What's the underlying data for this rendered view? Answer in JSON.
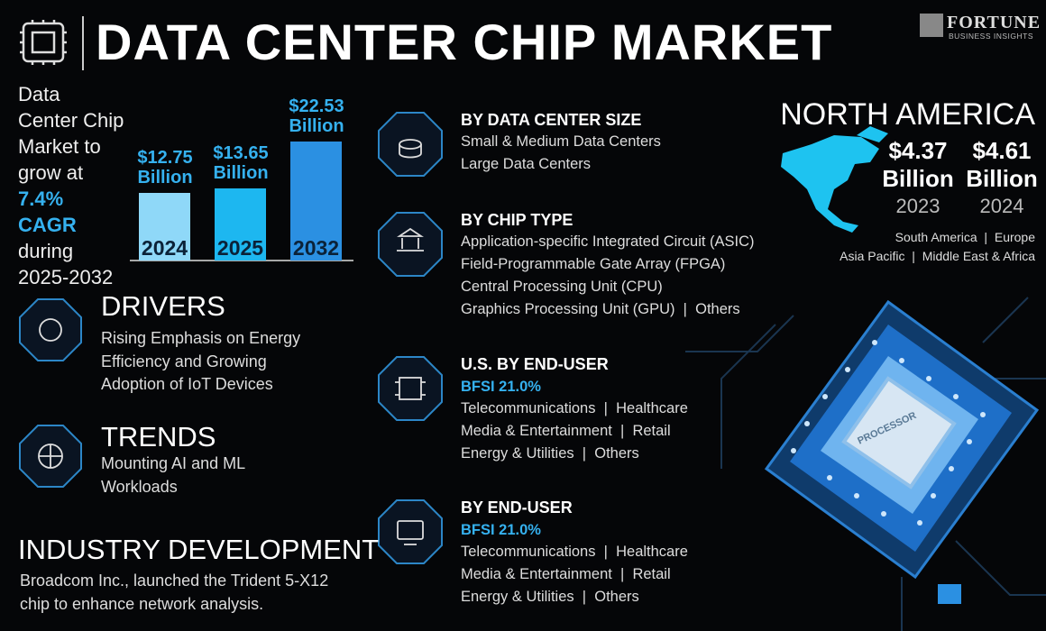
{
  "header": {
    "title": "DATA CENTER CHIP MARKET",
    "brand": "FORTUNE",
    "brand_sub": "BUSINESS INSIGHTS"
  },
  "growth": {
    "text_1": "Data Center Chip Market to grow at",
    "cagr": "7.4% CAGR",
    "text_2": "during 2025-2032"
  },
  "market_chart": {
    "type": "bar",
    "categories": [
      "2024",
      "2025",
      "2032"
    ],
    "values": [
      12.75,
      13.65,
      22.53
    ],
    "value_labels": [
      "$12.75 Billion",
      "$13.65 Billion",
      "$22.53 Billion"
    ],
    "colors": [
      "#8fd8f8",
      "#1db7f0",
      "#2b90e2"
    ]
  },
  "drivers": {
    "title": "DRIVERS",
    "text": "Rising Emphasis on Energy Efficiency and Growing Adoption of IoT Devices"
  },
  "trends": {
    "title": "TRENDS",
    "text": "Mounting AI and ML Workloads"
  },
  "industry_development": {
    "title": "INDUSTRY DEVELOPMENT",
    "text": "Broadcom Inc., launched the Trident 5-X12 chip to enhance network analysis."
  },
  "segments": [
    {
      "title": "BY DATA CENTER SIZE",
      "items": [
        "Small & Medium Data Centers",
        "Large Data Centers"
      ]
    },
    {
      "title": "BY CHIP TYPE",
      "items": [
        "Application-specific Integrated Circuit (ASIC)",
        "Field-Programmable Gate Array (FPGA)",
        "Central Processing Unit (CPU)",
        "Graphics Processing Unit (GPU)  |  Others"
      ]
    },
    {
      "title": "U.S. BY END-USER",
      "highlight": "BFSI 21.0%",
      "items": [
        "Telecommunications  |  Healthcare",
        "Media & Entertainment  |  Retail",
        "Energy & Utilities  |  Others"
      ]
    },
    {
      "title": "BY END-USER",
      "highlight": "BFSI 21.0%",
      "items": [
        "Telecommunications  |  Healthcare",
        "Media & Entertainment  |  Retail",
        "Energy & Utilities  |  Others"
      ]
    }
  ],
  "region": {
    "title": "NORTH AMERICA",
    "values": [
      {
        "amount": "$4.37 Billion",
        "year": "2023"
      },
      {
        "amount": "$4.61 Billion",
        "year": "2024"
      }
    ],
    "others": [
      "South America  |  Europe",
      "Asia Pacific  |  Middle East & Africa"
    ]
  },
  "processor_label": "PROCESSOR"
}
